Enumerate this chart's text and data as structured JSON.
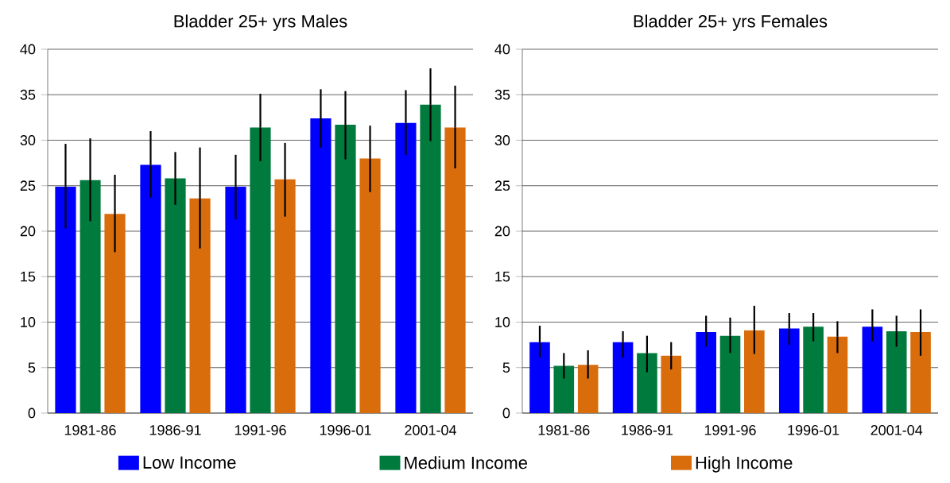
{
  "chart_data": [
    {
      "type": "bar",
      "title": "Bladder   25+ yrs   Males",
      "categories": [
        "1981-86",
        "1986-91",
        "1991-96",
        "1996-01",
        "2001-04"
      ],
      "ylim": [
        0,
        40
      ],
      "yticks": [
        0,
        5,
        10,
        15,
        20,
        25,
        30,
        35,
        40
      ],
      "grid": "y",
      "legend": "bottom",
      "series": [
        {
          "name": "Low Income",
          "color": "#0000ff",
          "values": [
            24.9,
            27.3,
            24.9,
            32.4,
            31.9
          ],
          "errors": [
            [
              20.3,
              29.6
            ],
            [
              23.7,
              31.0
            ],
            [
              21.3,
              28.4
            ],
            [
              29.2,
              35.6
            ],
            [
              28.4,
              35.5
            ]
          ]
        },
        {
          "name": "Medium Income",
          "color": "#007a3d",
          "values": [
            25.6,
            25.8,
            31.4,
            31.7,
            33.9
          ],
          "errors": [
            [
              21.1,
              30.2
            ],
            [
              22.9,
              28.7
            ],
            [
              27.7,
              35.1
            ],
            [
              27.9,
              35.4
            ],
            [
              29.9,
              37.9
            ]
          ]
        },
        {
          "name": "High Income",
          "color": "#d96d0c",
          "values": [
            21.9,
            23.6,
            25.7,
            28.0,
            31.4
          ],
          "errors": [
            [
              17.7,
              26.2
            ],
            [
              18.1,
              29.2
            ],
            [
              21.6,
              29.7
            ],
            [
              24.3,
              31.6
            ],
            [
              26.9,
              36.0
            ]
          ]
        }
      ]
    },
    {
      "type": "bar",
      "title": "Bladder   25+ yrs   Females",
      "categories": [
        "1981-86",
        "1986-91",
        "1991-96",
        "1996-01",
        "2001-04"
      ],
      "ylim": [
        0,
        40
      ],
      "yticks": [
        0,
        5,
        10,
        15,
        20,
        25,
        30,
        35,
        40
      ],
      "grid": "y",
      "series": [
        {
          "color": "#0000ff",
          "values": [
            7.8,
            7.8,
            8.9,
            9.3,
            9.5
          ],
          "errors": [
            [
              6.1,
              9.6
            ],
            [
              6.1,
              9.0
            ],
            [
              7.3,
              10.7
            ],
            [
              7.5,
              11.0
            ],
            [
              7.9,
              11.4
            ]
          ]
        },
        {
          "color": "#007a3d",
          "values": [
            5.2,
            6.6,
            8.5,
            9.5,
            9.0
          ],
          "errors": [
            [
              3.8,
              6.6
            ],
            [
              4.5,
              8.5
            ],
            [
              6.6,
              10.5
            ],
            [
              7.9,
              11.0
            ],
            [
              7.3,
              10.7
            ]
          ]
        },
        {
          "color": "#d96d0c",
          "values": [
            5.3,
            6.3,
            9.1,
            8.4,
            8.9
          ],
          "errors": [
            [
              3.8,
              6.9
            ],
            [
              4.8,
              7.8
            ],
            [
              6.5,
              11.8
            ],
            [
              6.6,
              10.1
            ],
            [
              6.3,
              11.4
            ]
          ]
        }
      ]
    }
  ]
}
